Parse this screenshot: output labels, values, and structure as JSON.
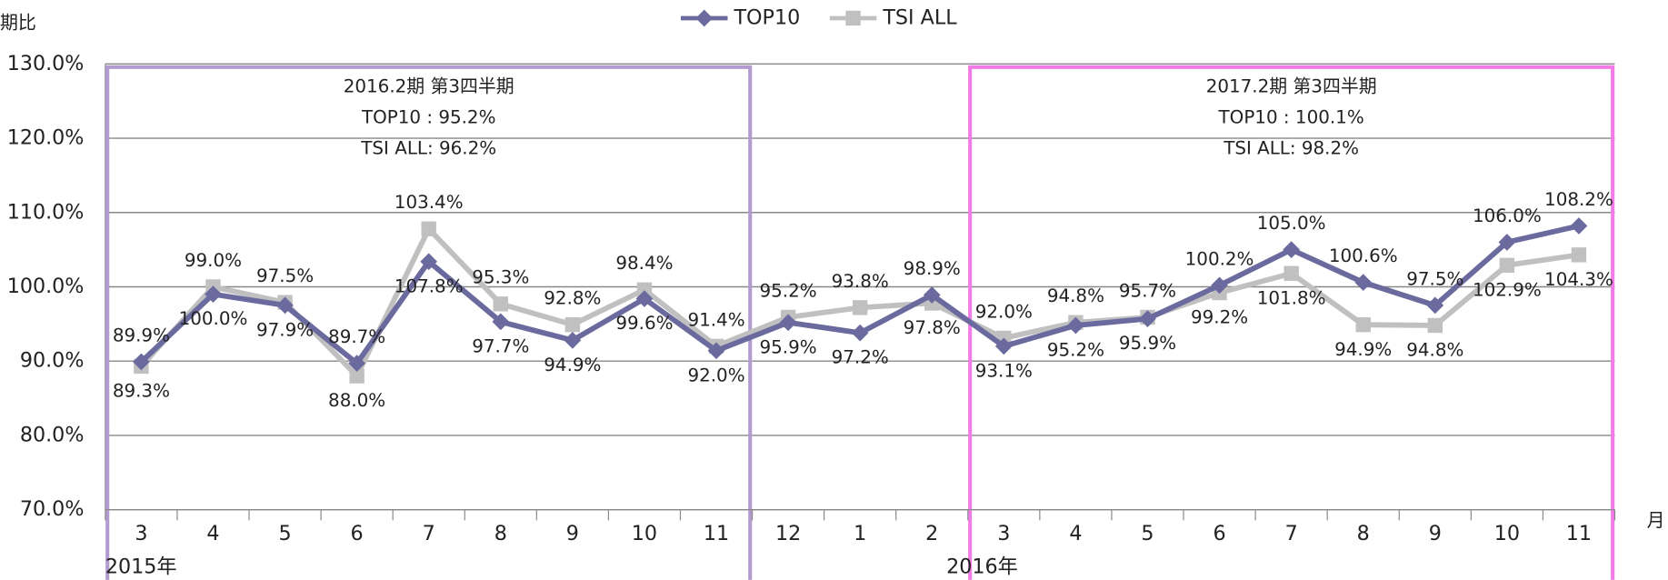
{
  "chart_data": {
    "type": "line",
    "y_axis_label": "期比",
    "x_axis_label": "月",
    "categories": [
      "3",
      "4",
      "5",
      "6",
      "7",
      "8",
      "9",
      "10",
      "11",
      "12",
      "1",
      "2",
      "3",
      "4",
      "5",
      "6",
      "7",
      "8",
      "9",
      "10",
      "11"
    ],
    "year_labels": [
      "2015年",
      "2016年"
    ],
    "series": [
      {
        "name": "TOP10",
        "color": "#6b6a9e",
        "marker": "diamond",
        "values": [
          89.9,
          99.0,
          97.5,
          89.7,
          103.4,
          95.3,
          92.8,
          98.4,
          91.4,
          95.2,
          93.8,
          98.9,
          92.0,
          94.8,
          95.7,
          100.2,
          105.0,
          100.6,
          97.5,
          106.0,
          108.2
        ],
        "value_labels": [
          "89.9%",
          "99.0%",
          "97.5%",
          "89.7%",
          "103.4%",
          "95.3%",
          "92.8%",
          "98.4%",
          "91.4%",
          "95.2%",
          "93.8%",
          "98.9%",
          "92.0%",
          "94.8%",
          "95.7%",
          "100.2%",
          "105.0%",
          "100.6%",
          "97.5%",
          "106.0%",
          "108.2%"
        ]
      },
      {
        "name": "TSI ALL",
        "color": "#c0c0c0",
        "marker": "square",
        "values": [
          89.3,
          100.0,
          97.9,
          88.0,
          107.8,
          97.7,
          94.9,
          99.6,
          92.0,
          95.9,
          97.2,
          97.8,
          93.1,
          95.2,
          95.9,
          99.2,
          101.8,
          94.9,
          94.8,
          102.9,
          104.3
        ],
        "value_labels": [
          "89.3%",
          "100.0%",
          "97.9%",
          "88.0%",
          "107.8%",
          "97.7%",
          "94.9%",
          "99.6%",
          "92.0%",
          "95.9%",
          "97.2%",
          "97.8%",
          "93.1%",
          "95.2%",
          "95.9%",
          "99.2%",
          "101.8%",
          "94.9%",
          "94.8%",
          "102.9%",
          "104.3%"
        ]
      }
    ],
    "ylim": [
      70,
      130
    ],
    "yticks": [
      {
        "value": 70,
        "label": "70.0%"
      },
      {
        "value": 80,
        "label": "80.0%"
      },
      {
        "value": 90,
        "label": "90.0%"
      },
      {
        "value": 100,
        "label": "100.0%"
      },
      {
        "value": 110,
        "label": "110.0%"
      },
      {
        "value": 120,
        "label": "120.0%"
      },
      {
        "value": 130,
        "label": "130.0%"
      }
    ],
    "grid": true,
    "legend": "top",
    "annotations": [
      [
        "2016.2期 第3四半期",
        "TOP10 : 95.2%",
        "TSI ALL: 96.2%"
      ],
      [
        "2017.2期 第3四半期",
        "TOP10 : 100.1%",
        "TSI ALL: 98.2%"
      ]
    ]
  }
}
